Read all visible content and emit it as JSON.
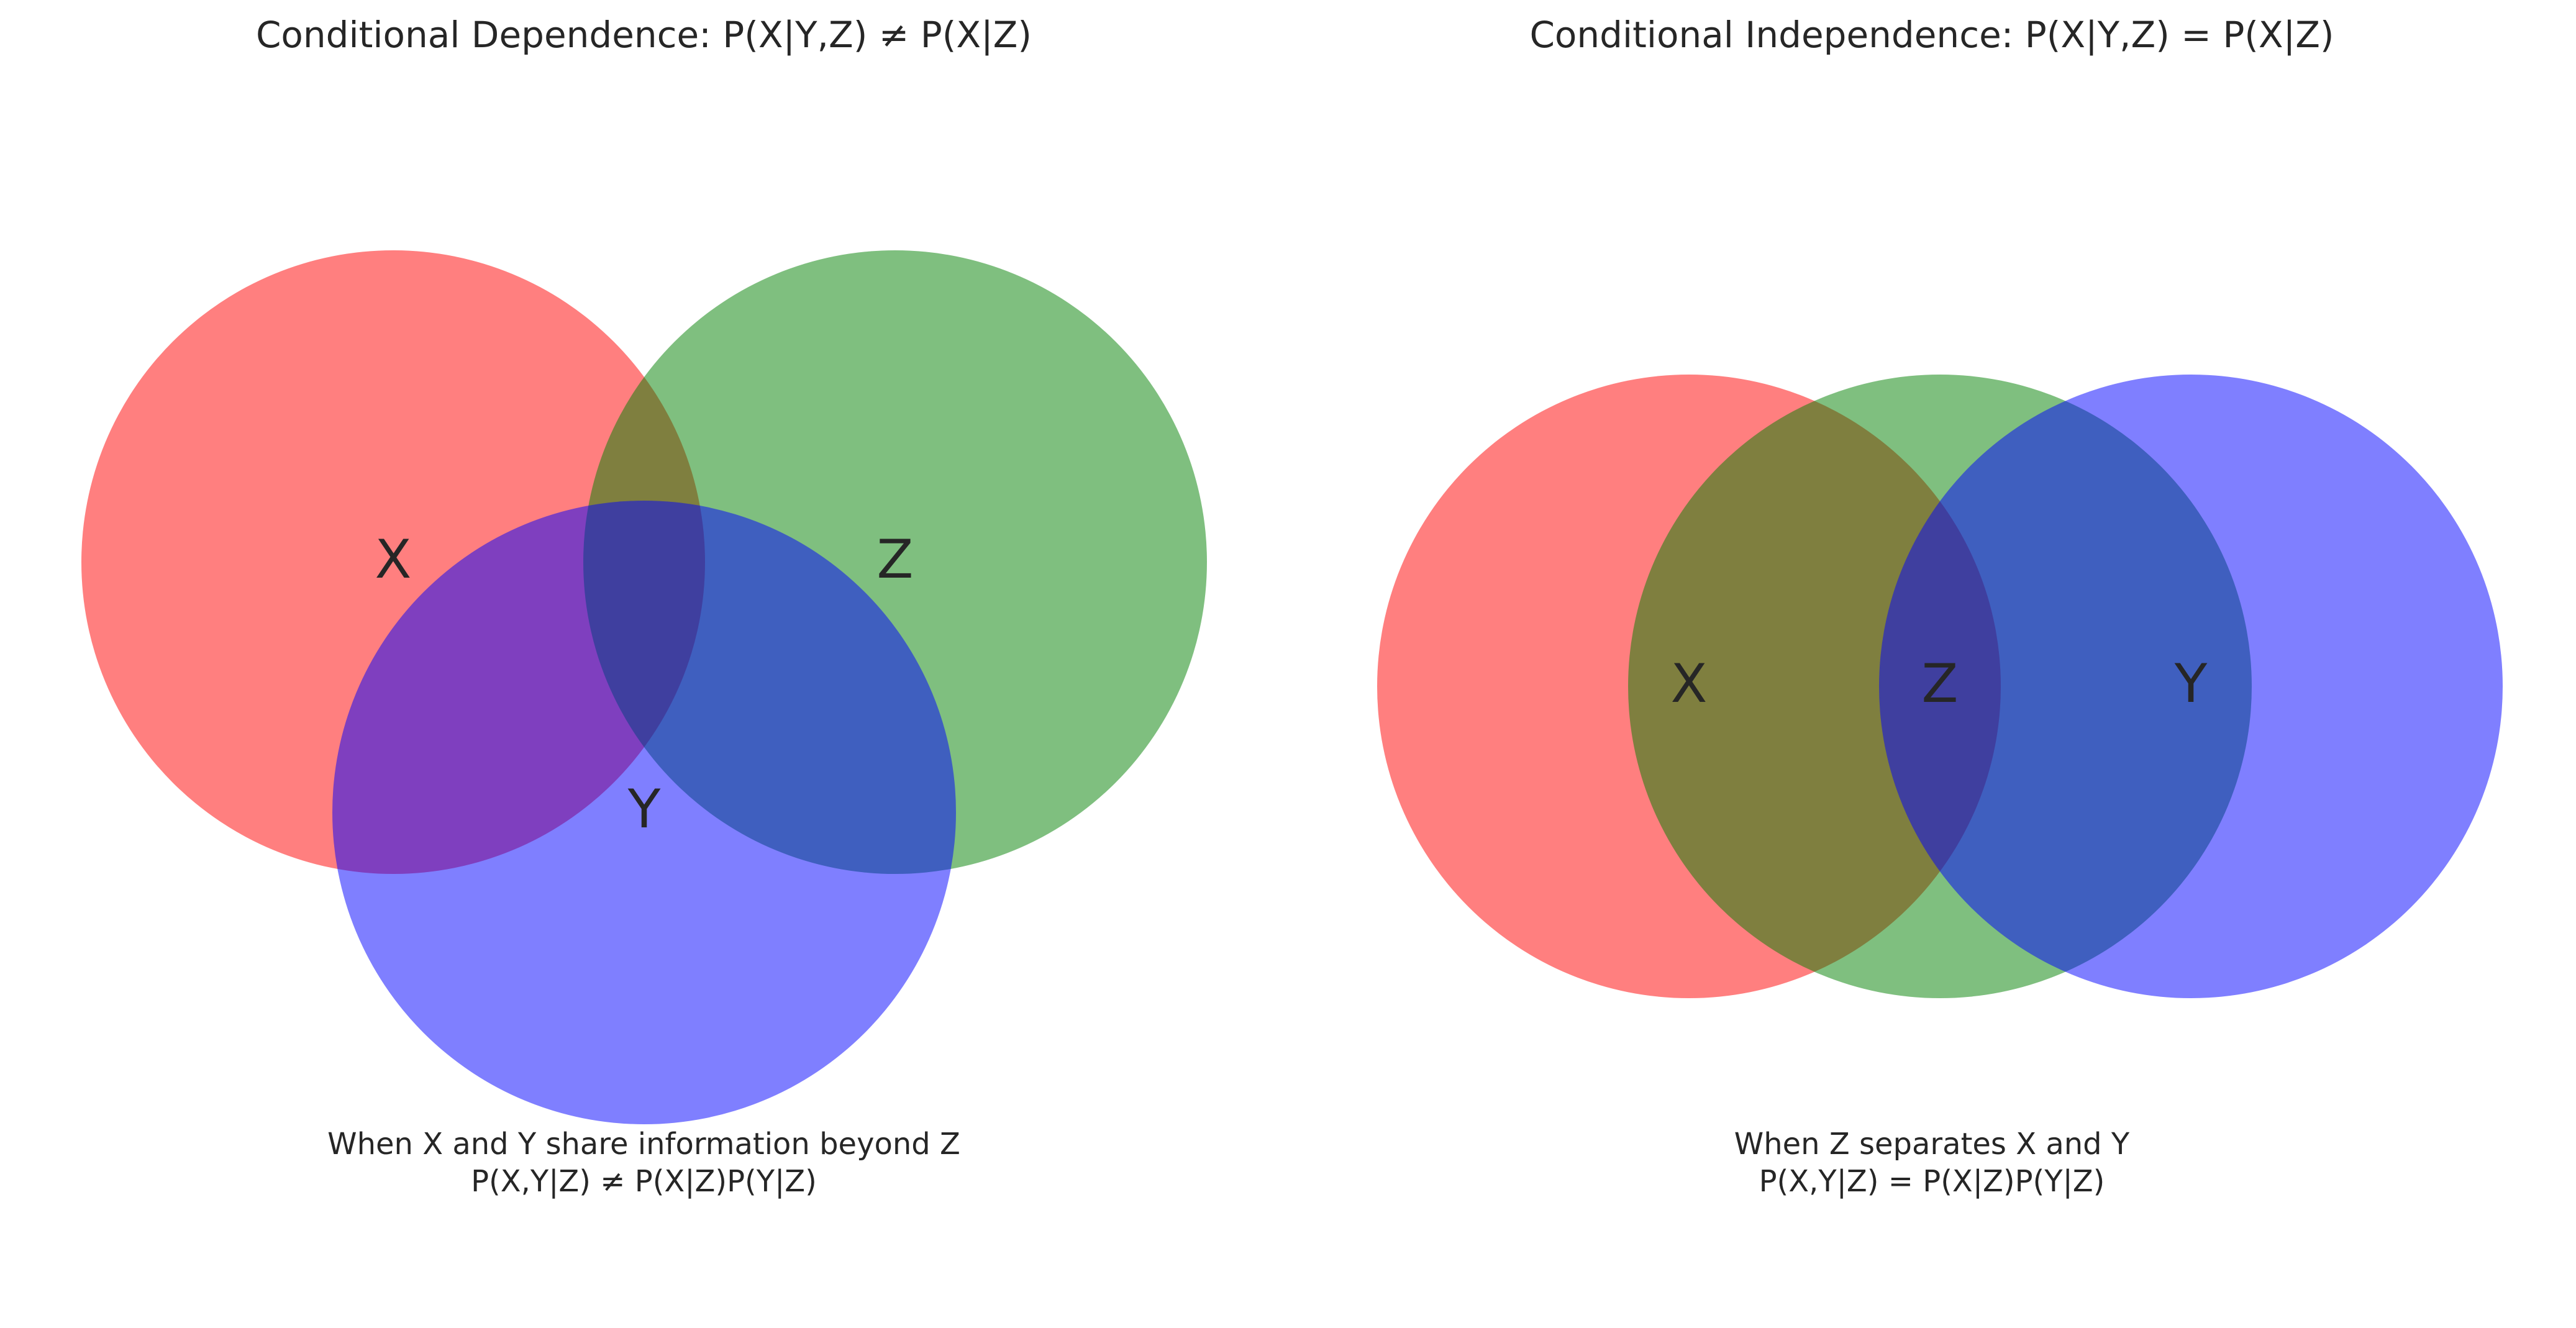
{
  "colors": {
    "X": "#ff0000",
    "Y": "#0000ff",
    "Z": "#008000",
    "circle_opacity": 0.5,
    "text": "#262626",
    "background": "#ffffff"
  },
  "panels": [
    {
      "id": "dependence",
      "title": "Conditional Dependence: P(X|Y,Z) ≠ P(X|Z)",
      "circles": [
        {
          "set": "X",
          "label": "X"
        },
        {
          "set": "Z",
          "label": "Z"
        },
        {
          "set": "Y",
          "label": "Y"
        }
      ],
      "caption_line1": "When X and Y share information beyond Z",
      "caption_line2": "P(X,Y|Z) ≠ P(X|Z)P(Y|Z)"
    },
    {
      "id": "independence",
      "title": "Conditional Independence: P(X|Y,Z) = P(X|Z)",
      "circles": [
        {
          "set": "X",
          "label": "X"
        },
        {
          "set": "Z",
          "label": "Z"
        },
        {
          "set": "Y",
          "label": "Y"
        }
      ],
      "caption_line1": "When Z separates X and Y",
      "caption_line2": "P(X,Y|Z) = P(X|Z)P(Y|Z)"
    }
  ]
}
